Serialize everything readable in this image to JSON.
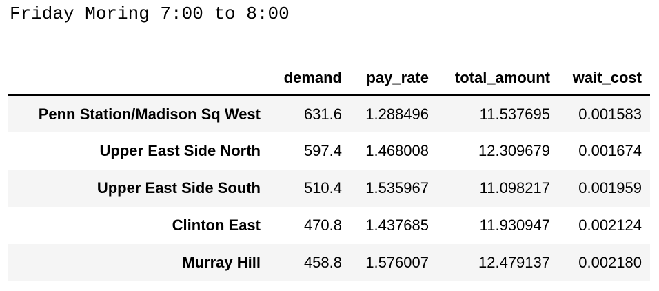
{
  "caption": "Friday Moring 7:00 to 8:00",
  "table": {
    "index_header": "",
    "columns": [
      "demand",
      "pay_rate",
      "total_amount",
      "wait_cost"
    ],
    "rows": [
      {
        "label": "Penn Station/Madison Sq West",
        "values": [
          "631.6",
          "1.288496",
          "11.537695",
          "0.001583"
        ]
      },
      {
        "label": "Upper East Side North",
        "values": [
          "597.4",
          "1.468008",
          "12.309679",
          "0.001674"
        ]
      },
      {
        "label": "Upper East Side South",
        "values": [
          "510.4",
          "1.535967",
          "11.098217",
          "0.001959"
        ]
      },
      {
        "label": "Clinton East",
        "values": [
          "470.8",
          "1.437685",
          "11.930947",
          "0.002124"
        ]
      },
      {
        "label": "Murray Hill",
        "values": [
          "458.8",
          "1.576007",
          "12.479137",
          "0.002180"
        ]
      }
    ]
  },
  "colors": {
    "stripe": "#f5f5f5",
    "text": "#000000",
    "background": "#ffffff"
  }
}
